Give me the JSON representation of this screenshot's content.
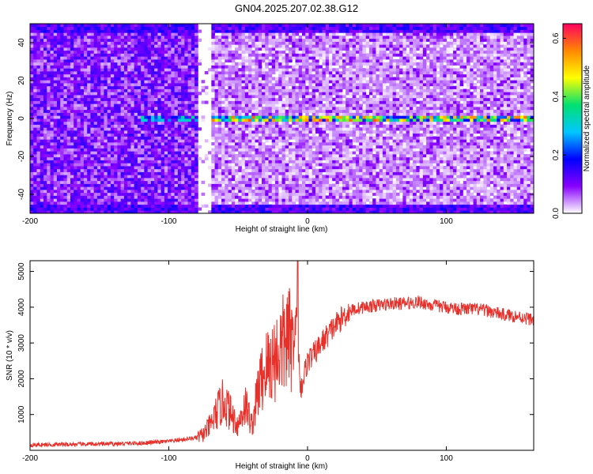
{
  "title": "GN04.2025.207.02.38.G12",
  "colors": {
    "snr_line": "#e8302a",
    "frame": "#000000",
    "background": "#ffffff"
  },
  "chart_data": [
    {
      "type": "heatmap",
      "title": "GN04.2025.207.02.38.G12",
      "xlabel": "Height of straight line (km)",
      "ylabel": "Frequency (Hz)",
      "xlim": [
        -200,
        163
      ],
      "ylim": [
        -50,
        50
      ],
      "x_ticks": [
        -200,
        -100,
        0,
        100
      ],
      "y_ticks": [
        -40,
        -20,
        0,
        20,
        40
      ],
      "colorbar": {
        "label": "Normalized spectral amplitude",
        "range": [
          0.0,
          0.65
        ],
        "ticks": [
          0.0,
          0.2,
          0.4,
          0.6
        ],
        "colormap": [
          "#ffffff",
          "#8800ff",
          "#0000ff",
          "#00c8ff",
          "#00e070",
          "#ffff00",
          "#ff8800",
          "#ff0060"
        ]
      },
      "features": {
        "signal_band_frequency_hz": 0,
        "signal_starts_km": -80,
        "gap_km": [
          -80,
          -70
        ],
        "noise_dense_region_km": [
          -200,
          -80
        ]
      },
      "grid": false
    },
    {
      "type": "line",
      "xlabel": "Height of straight line (km)",
      "ylabel": "SNR (10 * v/v)",
      "xlim": [
        -200,
        163
      ],
      "ylim": [
        0,
        5300
      ],
      "x_ticks": [
        -200,
        -100,
        0,
        100
      ],
      "y_ticks": [
        1000,
        2000,
        3000,
        4000,
        5000
      ],
      "series": [
        {
          "x": [
            -200,
            -180,
            -160,
            -140,
            -120,
            -100,
            -90,
            -80,
            -75,
            -70,
            -65,
            -60,
            -55,
            -50,
            -45,
            -40,
            -35,
            -30,
            -25,
            -20,
            -15,
            -10,
            -8,
            -5,
            0,
            5,
            10,
            20,
            30,
            40,
            50,
            60,
            70,
            80,
            90,
            100,
            110,
            120,
            130,
            140,
            150,
            163
          ],
          "y": [
            150,
            160,
            170,
            180,
            200,
            250,
            300,
            350,
            450,
            700,
            1100,
            1400,
            1000,
            700,
            1300,
            700,
            1800,
            2300,
            2500,
            2800,
            3100,
            3000,
            3800,
            1700,
            2500,
            2700,
            3000,
            3500,
            3900,
            4000,
            4050,
            4100,
            4100,
            4150,
            4050,
            4000,
            3950,
            3950,
            3900,
            3800,
            3750,
            3650
          ]
        }
      ],
      "grid": false
    }
  ]
}
